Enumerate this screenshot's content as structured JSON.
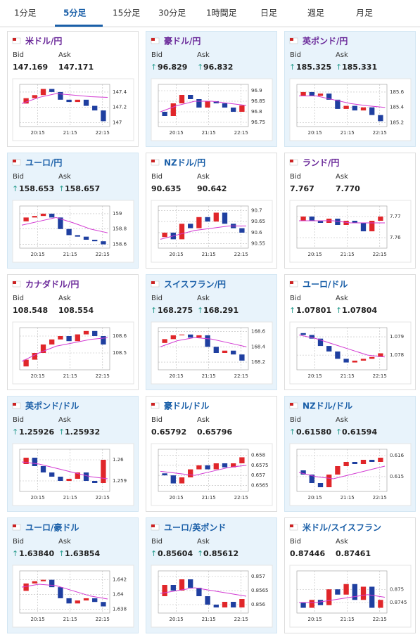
{
  "tabs": [
    "1分足",
    "5分足",
    "15分足",
    "30分足",
    "1時間足",
    "日足",
    "週足",
    "月足"
  ],
  "active_tab": 1,
  "bid_label": "Bid",
  "ask_label": "Ask",
  "x_labels": [
    "20:15",
    "21:15",
    "22:15"
  ],
  "cards": [
    {
      "title": "米ドル/円",
      "highlight": false,
      "visited": true,
      "arrow": false,
      "bid": "147.169",
      "ask": "147.171",
      "chart": {
        "type": "candlestick",
        "ylim": [
          146.95,
          147.5
        ],
        "yticks": [
          147.4,
          147.2,
          147
        ],
        "candles": [
          [
            147.25,
            147.32
          ],
          [
            147.32,
            147.36
          ],
          [
            147.36,
            147.44
          ],
          [
            147.44,
            147.4
          ],
          [
            147.4,
            147.3
          ],
          [
            147.3,
            147.27
          ],
          [
            147.27,
            147.3
          ],
          [
            147.3,
            147.22
          ],
          [
            147.22,
            147.16
          ],
          [
            147.16,
            147.02
          ]
        ],
        "ma": [
          147.25,
          147.33,
          147.38,
          147.36,
          147.34,
          147.33
        ]
      }
    },
    {
      "title": "豪ドル/円",
      "highlight": true,
      "visited": true,
      "arrow": true,
      "bid": "96.829",
      "ask": "96.832",
      "chart": {
        "type": "candlestick",
        "ylim": [
          96.73,
          96.93
        ],
        "yticks": [
          96.9,
          96.85,
          96.8,
          96.75
        ],
        "candles": [
          [
            96.8,
            96.78
          ],
          [
            96.78,
            96.84
          ],
          [
            96.84,
            96.88
          ],
          [
            96.88,
            96.86
          ],
          [
            96.86,
            96.82
          ],
          [
            96.82,
            96.85
          ],
          [
            96.85,
            96.84
          ],
          [
            96.84,
            96.82
          ],
          [
            96.82,
            96.8
          ],
          [
            96.8,
            96.83
          ]
        ],
        "ma": [
          96.8,
          96.83,
          96.85,
          96.85,
          96.84,
          96.83
        ]
      }
    },
    {
      "title": "英ポンド/円",
      "highlight": true,
      "visited": true,
      "arrow": true,
      "bid": "185.325",
      "ask": "185.331",
      "chart": {
        "type": "candlestick",
        "ylim": [
          185.15,
          185.7
        ],
        "yticks": [
          185.6,
          185.4,
          185.2
        ],
        "candles": [
          [
            185.55,
            185.6
          ],
          [
            185.6,
            185.55
          ],
          [
            185.55,
            185.58
          ],
          [
            185.58,
            185.5
          ],
          [
            185.5,
            185.38
          ],
          [
            185.38,
            185.42
          ],
          [
            185.42,
            185.36
          ],
          [
            185.36,
            185.4
          ],
          [
            185.4,
            185.3
          ],
          [
            185.3,
            185.22
          ]
        ],
        "ma": [
          185.55,
          185.55,
          185.5,
          185.45,
          185.42,
          185.4
        ]
      }
    },
    {
      "title": "ユーロ/円",
      "highlight": true,
      "visited": false,
      "arrow": true,
      "bid": "158.653",
      "ask": "158.657",
      "chart": {
        "type": "candlestick",
        "ylim": [
          158.55,
          159.1
        ],
        "yticks": [
          159,
          158.8,
          158.6
        ],
        "candles": [
          [
            158.9,
            158.95
          ],
          [
            158.95,
            158.97
          ],
          [
            158.97,
            159.0
          ],
          [
            159.0,
            158.95
          ],
          [
            158.95,
            158.8
          ],
          [
            158.8,
            158.72
          ],
          [
            158.72,
            158.7
          ],
          [
            158.7,
            158.66
          ],
          [
            158.66,
            158.64
          ],
          [
            158.64,
            158.6
          ]
        ],
        "ma": [
          158.85,
          158.9,
          158.95,
          158.88,
          158.8,
          158.75
        ]
      }
    },
    {
      "title": "NZドル/円",
      "highlight": false,
      "visited": false,
      "arrow": false,
      "bid": "90.635",
      "ask": "90.642",
      "chart": {
        "type": "candlestick",
        "ylim": [
          90.53,
          90.72
        ],
        "yticks": [
          90.7,
          90.65,
          90.6,
          90.55
        ],
        "candles": [
          [
            90.58,
            90.6
          ],
          [
            90.6,
            90.57
          ],
          [
            90.57,
            90.64
          ],
          [
            90.64,
            90.62
          ],
          [
            90.62,
            90.67
          ],
          [
            90.67,
            90.65
          ],
          [
            90.65,
            90.69
          ],
          [
            90.69,
            90.64
          ],
          [
            90.64,
            90.62
          ],
          [
            90.62,
            90.6
          ]
        ],
        "ma": [
          90.57,
          90.59,
          90.61,
          90.62,
          90.63,
          90.63
        ]
      }
    },
    {
      "title": "ランド/円",
      "highlight": false,
      "visited": true,
      "arrow": false,
      "bid": "7.767",
      "ask": "7.770",
      "chart": {
        "type": "candlestick",
        "ylim": [
          7.755,
          7.775
        ],
        "yticks": [
          7.77,
          7.76
        ],
        "candles": [
          [
            7.768,
            7.77
          ],
          [
            7.77,
            7.768
          ],
          [
            7.768,
            7.767
          ],
          [
            7.767,
            7.769
          ],
          [
            7.769,
            7.766
          ],
          [
            7.766,
            7.768
          ],
          [
            7.768,
            7.767
          ],
          [
            7.767,
            7.763
          ],
          [
            7.763,
            7.768
          ],
          [
            7.768,
            7.77
          ]
        ],
        "ma": [
          7.768,
          7.768,
          7.768,
          7.767,
          7.767,
          7.767
        ]
      }
    },
    {
      "title": "カナダドル/円",
      "highlight": false,
      "visited": true,
      "arrow": false,
      "bid": "108.548",
      "ask": "108.554",
      "chart": {
        "type": "candlestick",
        "ylim": [
          108.4,
          108.65
        ],
        "yticks": [
          108.6,
          108.5
        ],
        "candles": [
          [
            108.42,
            108.46
          ],
          [
            108.46,
            108.5
          ],
          [
            108.5,
            108.55
          ],
          [
            108.55,
            108.58
          ],
          [
            108.58,
            108.6
          ],
          [
            108.6,
            108.57
          ],
          [
            108.57,
            108.61
          ],
          [
            108.61,
            108.63
          ],
          [
            108.63,
            108.6
          ],
          [
            108.6,
            108.55
          ]
        ],
        "ma": [
          108.45,
          108.5,
          108.54,
          108.56,
          108.58,
          108.59
        ]
      }
    },
    {
      "title": "スイスフラン/円",
      "highlight": true,
      "visited": false,
      "arrow": true,
      "bid": "168.275",
      "ask": "168.291",
      "chart": {
        "type": "candlestick",
        "ylim": [
          168.1,
          168.65
        ],
        "yticks": [
          168.6,
          168.4,
          168.2
        ],
        "candles": [
          [
            168.45,
            168.5
          ],
          [
            168.5,
            168.55
          ],
          [
            168.55,
            168.56
          ],
          [
            168.56,
            168.52
          ],
          [
            168.52,
            168.55
          ],
          [
            168.55,
            168.4
          ],
          [
            168.4,
            168.32
          ],
          [
            168.32,
            168.35
          ],
          [
            168.35,
            168.3
          ],
          [
            168.3,
            168.22
          ]
        ],
        "ma": [
          168.4,
          168.48,
          168.52,
          168.5,
          168.45,
          168.4
        ]
      }
    },
    {
      "title": "ユーロ/ドル",
      "highlight": false,
      "visited": false,
      "arrow": true,
      "bid": "1.07801",
      "ask": "1.07804",
      "chart": {
        "type": "candlestick",
        "ylim": [
          1.0772,
          1.0795
        ],
        "yticks": [
          1.079,
          1.078
        ],
        "candles": [
          [
            1.0792,
            1.0791
          ],
          [
            1.0791,
            1.0789
          ],
          [
            1.0789,
            1.0785
          ],
          [
            1.0785,
            1.0782
          ],
          [
            1.0782,
            1.0778
          ],
          [
            1.0778,
            1.0776
          ],
          [
            1.0776,
            1.0777
          ],
          [
            1.0777,
            1.0778
          ],
          [
            1.0778,
            1.0779
          ],
          [
            1.0779,
            1.0781
          ]
        ],
        "ma": [
          1.0791,
          1.0789,
          1.0786,
          1.0783,
          1.078,
          1.0779
        ]
      }
    },
    {
      "title": "英ポンド/ドル",
      "highlight": true,
      "visited": false,
      "arrow": true,
      "bid": "1.25926",
      "ask": "1.25932",
      "chart": {
        "type": "candlestick",
        "ylim": [
          1.2585,
          1.2605
        ],
        "yticks": [
          1.26,
          1.259
        ],
        "candles": [
          [
            1.2598,
            1.2601
          ],
          [
            1.2601,
            1.2597
          ],
          [
            1.2597,
            1.2594
          ],
          [
            1.2594,
            1.2592
          ],
          [
            1.2592,
            1.259
          ],
          [
            1.259,
            1.2591
          ],
          [
            1.2591,
            1.2594
          ],
          [
            1.2594,
            1.259
          ],
          [
            1.259,
            1.2589
          ],
          [
            1.2589,
            1.26
          ]
        ],
        "ma": [
          1.2599,
          1.2598,
          1.2596,
          1.2594,
          1.2592,
          1.2591
        ]
      }
    },
    {
      "title": "豪ドル/ドル",
      "highlight": false,
      "visited": false,
      "arrow": false,
      "bid": "0.65792",
      "ask": "0.65796",
      "chart": {
        "type": "candlestick",
        "ylim": [
          0.6562,
          0.6583
        ],
        "yticks": [
          0.658,
          0.6575,
          0.657,
          0.6565
        ],
        "candles": [
          [
            0.6571,
            0.657
          ],
          [
            0.657,
            0.6566
          ],
          [
            0.6566,
            0.6569
          ],
          [
            0.6569,
            0.6573
          ],
          [
            0.6573,
            0.6575
          ],
          [
            0.6575,
            0.6573
          ],
          [
            0.6573,
            0.6576
          ],
          [
            0.6576,
            0.6574
          ],
          [
            0.6574,
            0.6576
          ],
          [
            0.6576,
            0.6579
          ]
        ],
        "ma": [
          0.6572,
          0.6571,
          0.657,
          0.6572,
          0.6574,
          0.6575
        ]
      }
    },
    {
      "title": "NZドル/ドル",
      "highlight": true,
      "visited": false,
      "arrow": true,
      "bid": "0.61580",
      "ask": "0.61594",
      "chart": {
        "type": "candlestick",
        "ylim": [
          0.6143,
          0.6163
        ],
        "yticks": [
          0.616,
          0.615
        ],
        "candles": [
          [
            0.6153,
            0.6151
          ],
          [
            0.6151,
            0.6147
          ],
          [
            0.6147,
            0.6145
          ],
          [
            0.6145,
            0.6151
          ],
          [
            0.6151,
            0.6155
          ],
          [
            0.6155,
            0.6157
          ],
          [
            0.6157,
            0.6156
          ],
          [
            0.6156,
            0.6158
          ],
          [
            0.6158,
            0.6157
          ],
          [
            0.6157,
            0.6159
          ]
        ],
        "ma": [
          0.6152,
          0.615,
          0.6149,
          0.6151,
          0.6153,
          0.6155
        ]
      }
    },
    {
      "title": "ユーロ/豪ドル",
      "highlight": true,
      "visited": false,
      "arrow": true,
      "bid": "1.63840",
      "ask": "1.63854",
      "chart": {
        "type": "candlestick",
        "ylim": [
          1.6375,
          1.6432
        ],
        "yticks": [
          1.642,
          1.64,
          1.638
        ],
        "candles": [
          [
            1.6405,
            1.6415
          ],
          [
            1.6415,
            1.6418
          ],
          [
            1.6418,
            1.642
          ],
          [
            1.642,
            1.641
          ],
          [
            1.641,
            1.6395
          ],
          [
            1.6395,
            1.6388
          ],
          [
            1.6388,
            1.6392
          ],
          [
            1.6392,
            1.6395
          ],
          [
            1.6395,
            1.639
          ],
          [
            1.639,
            1.6384
          ]
        ],
        "ma": [
          1.641,
          1.6414,
          1.6412,
          1.6405,
          1.6398,
          1.6394
        ]
      }
    },
    {
      "title": "ユーロ/英ポンド",
      "highlight": true,
      "visited": false,
      "arrow": true,
      "bid": "0.85604",
      "ask": "0.85612",
      "chart": {
        "type": "candlestick",
        "ylim": [
          0.8557,
          0.8572
        ],
        "yticks": [
          0.857,
          0.8565,
          0.856
        ],
        "candles": [
          [
            0.8563,
            0.8567
          ],
          [
            0.8567,
            0.8565
          ],
          [
            0.8565,
            0.8569
          ],
          [
            0.8569,
            0.8566
          ],
          [
            0.8566,
            0.8563
          ],
          [
            0.8563,
            0.856
          ],
          [
            0.856,
            0.8559
          ],
          [
            0.8559,
            0.8561
          ],
          [
            0.8561,
            0.8559
          ],
          [
            0.8559,
            0.8562
          ]
        ],
        "ma": [
          0.8564,
          0.8565,
          0.8566,
          0.8565,
          0.8564,
          0.8563
        ]
      }
    },
    {
      "title": "米ドル/スイスフラン",
      "highlight": false,
      "visited": false,
      "arrow": false,
      "bid": "0.87446",
      "ask": "0.87461",
      "chart": {
        "type": "candlestick",
        "ylim": [
          0.8741,
          0.8757
        ],
        "yticks": [
          0.875,
          0.8745
        ],
        "candles": [
          [
            0.8745,
            0.8743
          ],
          [
            0.8743,
            0.8746
          ],
          [
            0.8746,
            0.8744
          ],
          [
            0.8744,
            0.875
          ],
          [
            0.875,
            0.8748
          ],
          [
            0.8748,
            0.8752
          ],
          [
            0.8752,
            0.8746
          ],
          [
            0.8746,
            0.8751
          ],
          [
            0.8751,
            0.8743
          ],
          [
            0.8743,
            0.8746
          ]
        ],
        "ma": [
          0.8745,
          0.8745,
          0.8746,
          0.8747,
          0.8748,
          0.8747
        ]
      }
    }
  ]
}
